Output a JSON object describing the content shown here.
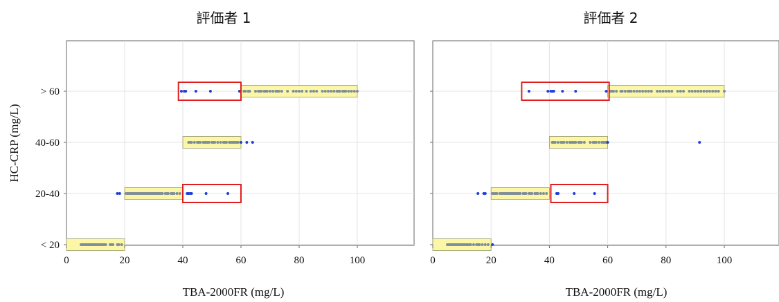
{
  "figure": {
    "ylabel": "HC-CRP (mg/L)"
  },
  "chart_data": [
    {
      "type": "scatter",
      "title": "評価者 1",
      "xlabel": "TBA-2000FR (mg/L)",
      "ylabel": "HC-CRP (mg/L)",
      "xlim": [
        0,
        120
      ],
      "xticks": [
        0,
        20,
        40,
        60,
        80,
        100
      ],
      "y_categories": [
        "< 20",
        "20-40",
        "40-60",
        "> 60"
      ],
      "grid": true,
      "colors": {
        "concordant": "#7f8c9a",
        "discordant": "#1f3fd6",
        "concordant_band": "#fbf7a6",
        "discordant_box": "#e01e1e"
      },
      "concordant_bands": [
        {
          "category": "< 20",
          "x_range": [
            0,
            20
          ]
        },
        {
          "category": "20-40",
          "x_range": [
            20,
            40
          ]
        },
        {
          "category": "40-60",
          "x_range": [
            40,
            60
          ]
        },
        {
          "category": "> 60",
          "x_range": [
            60,
            100
          ]
        }
      ],
      "discordant_boxes": [
        {
          "category": "20-40",
          "x_range": [
            40,
            60
          ]
        },
        {
          "category": "> 60",
          "x_range": [
            38.5,
            60
          ]
        }
      ],
      "series": [
        {
          "category": "< 20",
          "group": "concordant",
          "x": [
            5,
            5.5,
            6,
            6.5,
            7,
            7.5,
            8,
            8.5,
            9,
            9.5,
            10,
            10.5,
            11,
            11.5,
            12,
            12.5,
            13,
            13.5,
            15,
            15.5,
            16,
            17.5,
            18,
            19
          ]
        },
        {
          "category": "< 20",
          "group": "discordant",
          "x": []
        },
        {
          "category": "20-40",
          "group": "concordant",
          "x": [
            20.5,
            21,
            21.5,
            22,
            22.5,
            23,
            23.5,
            24,
            24.5,
            25,
            25.5,
            26,
            26.5,
            27,
            27.5,
            28,
            28.5,
            29,
            29.5,
            30,
            30.5,
            31,
            31.5,
            32,
            32.5,
            33,
            34,
            34.5,
            35,
            36,
            36.5,
            37,
            38,
            39
          ]
        },
        {
          "category": "20-40",
          "group": "discordant",
          "x": [
            17.5,
            18.3,
            41.5,
            42,
            42.5,
            43,
            48,
            55.5
          ]
        },
        {
          "category": "40-60",
          "group": "concordant",
          "x": [
            42,
            42.5,
            43,
            44,
            45,
            45.5,
            46,
            47,
            47.5,
            48,
            48.5,
            49,
            50,
            50.5,
            51,
            52,
            53,
            54,
            54.5,
            55,
            56,
            56.5,
            57,
            57.5,
            58,
            58.5,
            59
          ]
        },
        {
          "category": "40-60",
          "group": "discordant",
          "x": [
            60,
            62,
            64
          ]
        },
        {
          "category": "> 60",
          "group": "concordant",
          "x": [
            61,
            61.5,
            62.5,
            63,
            65,
            66,
            66.5,
            67,
            68,
            68.5,
            69,
            70,
            71,
            72,
            72.5,
            73,
            74,
            76,
            78,
            79,
            80,
            81,
            82.5,
            84,
            85,
            86,
            88,
            89,
            90,
            91,
            92,
            93,
            93.5,
            94,
            95,
            95.5,
            96,
            97,
            98,
            99,
            100
          ]
        },
        {
          "category": "> 60",
          "group": "discordant",
          "x": [
            39.5,
            40.5,
            41,
            44.5,
            49.5,
            59.5
          ]
        }
      ]
    },
    {
      "type": "scatter",
      "title": "評価者 2",
      "xlabel": "TBA-2000FR (mg/L)",
      "ylabel": "",
      "xlim": [
        0,
        120
      ],
      "xticks": [
        0,
        20,
        40,
        60,
        80,
        100
      ],
      "y_categories": [
        "< 20",
        "20-40",
        "40-60",
        "> 60"
      ],
      "grid": true,
      "colors": {
        "concordant": "#7f8c9a",
        "discordant": "#1f3fd6",
        "concordant_band": "#fbf7a6",
        "discordant_box": "#e01e1e"
      },
      "concordant_bands": [
        {
          "category": "< 20",
          "x_range": [
            0,
            20
          ]
        },
        {
          "category": "20-40",
          "x_range": [
            20,
            40
          ]
        },
        {
          "category": "40-60",
          "x_range": [
            40,
            60
          ]
        },
        {
          "category": "> 60",
          "x_range": [
            60,
            100
          ]
        }
      ],
      "discordant_boxes": [
        {
          "category": "20-40",
          "x_range": [
            40.5,
            60
          ]
        },
        {
          "category": "> 60",
          "x_range": [
            30.5,
            60.5
          ]
        }
      ],
      "series": [
        {
          "category": "< 20",
          "group": "concordant",
          "x": [
            5,
            5.5,
            6,
            6.5,
            7,
            7.5,
            8,
            8.5,
            9,
            9.5,
            10,
            10.5,
            11,
            11.5,
            12,
            12.5,
            13,
            14,
            15,
            15.5,
            16,
            17,
            18,
            19
          ]
        },
        {
          "category": "< 20",
          "group": "discordant",
          "x": [
            20.5
          ]
        },
        {
          "category": "20-40",
          "group": "concordant",
          "x": [
            20.5,
            21,
            21.5,
            22,
            23,
            23.5,
            24,
            24.5,
            25,
            25.5,
            26,
            26.5,
            27,
            27.5,
            28,
            28.5,
            29,
            29.5,
            30,
            31,
            31.5,
            32,
            33,
            33.5,
            34,
            35,
            35.5,
            36,
            37,
            38,
            39
          ]
        },
        {
          "category": "20-40",
          "group": "discordant",
          "x": [
            15.5,
            17.5,
            18,
            42.5,
            43,
            48.5,
            55.5
          ]
        },
        {
          "category": "40-60",
          "group": "concordant",
          "x": [
            41,
            41.5,
            42,
            43,
            44,
            44.5,
            45,
            46,
            47,
            47.5,
            48,
            48.5,
            49,
            50,
            50.5,
            51,
            52,
            54,
            55,
            55.5,
            56,
            57,
            58,
            58.5,
            59,
            59.5
          ]
        },
        {
          "category": "40-60",
          "group": "discordant",
          "x": [
            60,
            91.5
          ]
        },
        {
          "category": "> 60",
          "group": "concordant",
          "x": [
            61,
            61.5,
            62,
            63,
            64.5,
            65,
            66,
            67,
            67.5,
            68,
            69,
            70,
            71,
            72,
            73,
            74,
            75,
            77,
            78,
            79,
            80,
            81,
            82,
            84,
            85,
            86,
            88,
            89,
            90,
            91,
            92,
            93,
            94,
            95,
            96,
            97,
            98,
            100
          ]
        },
        {
          "category": "> 60",
          "group": "discordant",
          "x": [
            33,
            39.5,
            40.5,
            41,
            41.5,
            44.5,
            49,
            59.5
          ]
        }
      ]
    }
  ]
}
